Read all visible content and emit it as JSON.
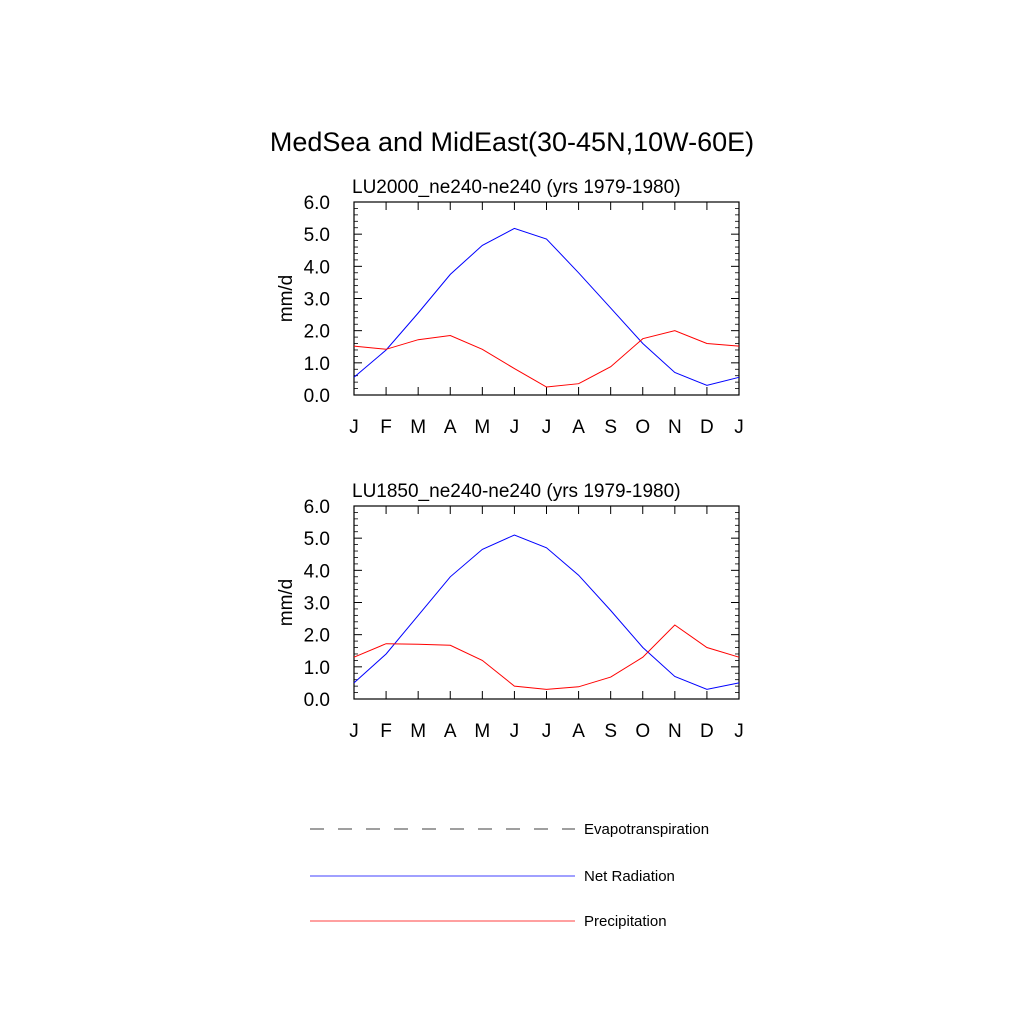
{
  "figure": {
    "title": "MedSea and MidEast(30-45N,10W-60E)"
  },
  "legend": {
    "entries": [
      {
        "label": "Evapotranspiration",
        "color": "#000000",
        "style": "dashed"
      },
      {
        "label": "Net Radiation",
        "color": "#0000ff",
        "style": "solid"
      },
      {
        "label": "Precipitation",
        "color": "#ff0000",
        "style": "solid"
      }
    ]
  },
  "chart_data": [
    {
      "type": "line",
      "title": "LU2000_ne240-ne240 (yrs 1979-1980)",
      "ylabel": "mm/d",
      "xlabel": "",
      "x": [
        "J",
        "F",
        "M",
        "A",
        "M",
        "J",
        "J",
        "A",
        "S",
        "O",
        "N",
        "D",
        "J"
      ],
      "ylim": [
        0,
        6
      ],
      "yticks": [
        "0.0",
        "1.0",
        "2.0",
        "3.0",
        "4.0",
        "5.0",
        "6.0"
      ],
      "grid": false,
      "series": [
        {
          "name": "Net Radiation",
          "color": "#0000ff",
          "values": [
            0.55,
            1.4,
            2.55,
            3.75,
            4.65,
            5.18,
            4.85,
            3.8,
            2.7,
            1.6,
            0.7,
            0.3,
            0.55
          ]
        },
        {
          "name": "Precipitation",
          "color": "#ff0000",
          "values": [
            1.52,
            1.42,
            1.72,
            1.85,
            1.42,
            0.82,
            0.25,
            0.35,
            0.88,
            1.75,
            2.0,
            1.6,
            1.52
          ]
        }
      ]
    },
    {
      "type": "line",
      "title": "LU1850_ne240-ne240 (yrs 1979-1980)",
      "ylabel": "mm/d",
      "xlabel": "",
      "x": [
        "J",
        "F",
        "M",
        "A",
        "M",
        "J",
        "J",
        "A",
        "S",
        "O",
        "N",
        "D",
        "J"
      ],
      "ylim": [
        0,
        6
      ],
      "yticks": [
        "0.0",
        "1.0",
        "2.0",
        "3.0",
        "4.0",
        "5.0",
        "6.0"
      ],
      "grid": false,
      "series": [
        {
          "name": "Net Radiation",
          "color": "#0000ff",
          "values": [
            0.5,
            1.4,
            2.6,
            3.8,
            4.65,
            5.1,
            4.7,
            3.85,
            2.75,
            1.6,
            0.7,
            0.3,
            0.5
          ]
        },
        {
          "name": "Precipitation",
          "color": "#ff0000",
          "values": [
            1.3,
            1.72,
            1.7,
            1.67,
            1.2,
            0.4,
            0.3,
            0.38,
            0.68,
            1.3,
            2.3,
            1.6,
            1.3
          ]
        }
      ]
    }
  ]
}
